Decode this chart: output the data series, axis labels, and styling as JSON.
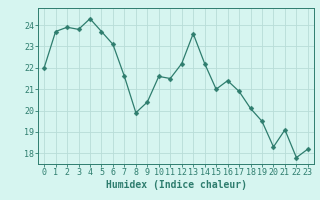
{
  "x": [
    0,
    1,
    2,
    3,
    4,
    5,
    6,
    7,
    8,
    9,
    10,
    11,
    12,
    13,
    14,
    15,
    16,
    17,
    18,
    19,
    20,
    21,
    22,
    23
  ],
  "y": [
    22.0,
    23.7,
    23.9,
    23.8,
    24.3,
    23.7,
    23.1,
    21.6,
    19.9,
    20.4,
    21.6,
    21.5,
    22.2,
    23.6,
    22.2,
    21.0,
    21.4,
    20.9,
    20.1,
    19.5,
    18.3,
    19.1,
    17.8,
    18.2
  ],
  "line_color": "#2e7d6e",
  "marker": "D",
  "marker_size": 2.5,
  "bg_color": "#d6f5f0",
  "grid_color": "#b8ddd8",
  "xlabel": "Humidex (Indice chaleur)",
  "ylim": [
    17.5,
    24.8
  ],
  "xlim": [
    -0.5,
    23.5
  ],
  "yticks": [
    18,
    19,
    20,
    21,
    22,
    23,
    24
  ],
  "xticks": [
    0,
    1,
    2,
    3,
    4,
    5,
    6,
    7,
    8,
    9,
    10,
    11,
    12,
    13,
    14,
    15,
    16,
    17,
    18,
    19,
    20,
    21,
    22,
    23
  ],
  "axis_color": "#2e7d6e",
  "tick_color": "#2e7d6e",
  "label_color": "#2e7d6e",
  "tick_fontsize": 6,
  "xlabel_fontsize": 7
}
